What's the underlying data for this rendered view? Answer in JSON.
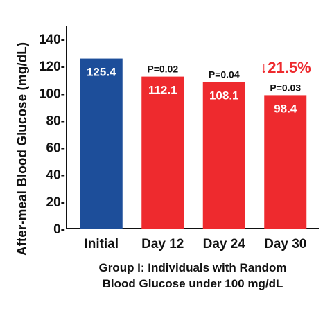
{
  "chart_data": {
    "type": "bar",
    "categories": [
      "Initial",
      "Day 12",
      "Day 24",
      "Day 30"
    ],
    "values": [
      125.4,
      112.1,
      108.1,
      98.4
    ],
    "value_labels": [
      "125.4",
      "112.1",
      "108.1",
      "98.4"
    ],
    "p_values": [
      "",
      "P=0.02",
      "P=0.04",
      "P=0.03"
    ],
    "bar_colors": [
      "#1d4e9a",
      "#ee2a2e",
      "#ee2a2e",
      "#ee2a2e"
    ],
    "ylabel": "After-meal Blood Glucose (mg/dL)",
    "xlabel_lines": [
      "Group I: Individuals with Random",
      "Blood Glucose under 100 mg/dL"
    ],
    "ylim": [
      0,
      140
    ],
    "yticks": [
      0,
      20,
      40,
      60,
      80,
      100,
      120,
      140
    ],
    "ytick_labels": [
      "0-",
      "20-",
      "40-",
      "60-",
      "80-",
      "100-",
      "120-",
      "140-"
    ],
    "annotation": {
      "arrow": "↓",
      "text": "21.5%",
      "color": "#ee2a2e",
      "category": "Day 30"
    },
    "grid": false,
    "legend": "none"
  }
}
